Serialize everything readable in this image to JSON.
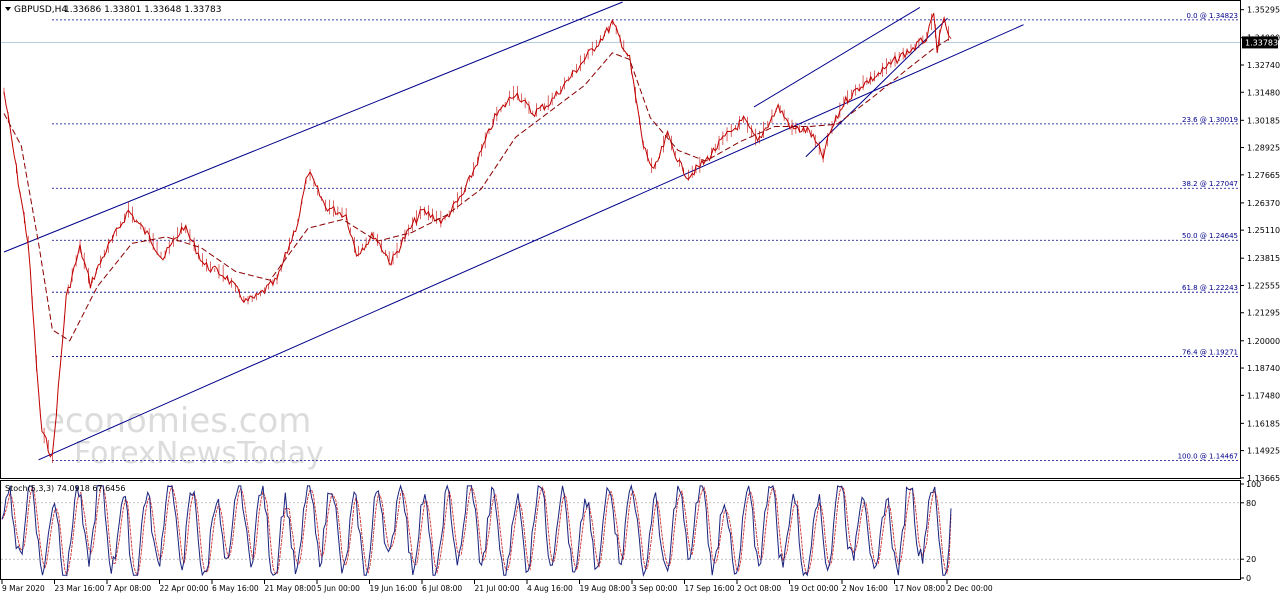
{
  "header": {
    "symbol": "GBPUSD,H4",
    "ohlc": "1.33686 1.33801 1.33648 1.33783"
  },
  "watermark": {
    "line1": "economies.com",
    "line2": "ForexNewsToday"
  },
  "colors": {
    "frame": "#000000",
    "candle": "#c00000",
    "ma": "#8b0000",
    "channel": "#00008b",
    "fib": "#00008b",
    "stoch_main": "#1a237e",
    "stoch_signal": "#d32f2f",
    "current_price_bg": "#000000",
    "current_price_text": "#ffffff"
  },
  "price_axis": {
    "ticks": [
      "1.35295",
      "1.34000",
      "1.32740",
      "1.31480",
      "1.30185",
      "1.28925",
      "1.27665",
      "1.26370",
      "1.25110",
      "1.23815",
      "1.22555",
      "1.21295",
      "1.20000",
      "1.18740",
      "1.17480",
      "1.16185",
      "1.14925",
      "1.13665"
    ],
    "current_price": "1.33783"
  },
  "time_axis": {
    "ticks": [
      "9 Mar 2020",
      "23 Mar 16:00",
      "7 Apr 08:00",
      "22 Apr 00:00",
      "6 May 16:00",
      "21 May 08:00",
      "5 Jun 00:00",
      "19 Jun 16:00",
      "6 Jul 08:00",
      "21 Jul 00:00",
      "4 Aug 16:00",
      "19 Aug 08:00",
      "3 Sep 00:00",
      "17 Sep 16:00",
      "2 Oct 08:00",
      "19 Oct 00:00",
      "2 Nov 16:00",
      "17 Nov 08:00",
      "2 Dec 00:00"
    ]
  },
  "fib_levels": [
    {
      "label": "0.0 @ 1.34823",
      "price": 1.34823
    },
    {
      "label": "23.6 @ 1.30019",
      "price": 1.30019
    },
    {
      "label": "38.2 @ 1.27047",
      "price": 1.27047
    },
    {
      "label": "50.0 @ 1.24645",
      "price": 1.24645
    },
    {
      "label": "61.8 @ 1.22243",
      "price": 1.22243
    },
    {
      "label": "76.4 @ 1.19271",
      "price": 1.19271
    },
    {
      "label": "100.0 @ 1.14467",
      "price": 1.14467
    }
  ],
  "stoch": {
    "label": "Stoch(5,3,3) 74.0918 67.6456",
    "ticks": [
      "100",
      "80",
      "20",
      "0"
    ],
    "levels": [
      80,
      20
    ]
  },
  "chart_data": {
    "type": "line",
    "symbol": "GBPUSD",
    "timeframe": "H4",
    "price_range": [
      1.1366,
      1.3565
    ],
    "x_range": [
      "2020-03-09",
      "2020-12-08"
    ],
    "price_path": {
      "dates": [
        "2020-03-09",
        "2020-03-12",
        "2020-03-16",
        "2020-03-19",
        "2020-03-20",
        "2020-03-23",
        "2020-03-27",
        "2020-03-31",
        "2020-04-03",
        "2020-04-07",
        "2020-04-14",
        "2020-04-20",
        "2020-04-24",
        "2020-04-30",
        "2020-05-06",
        "2020-05-12",
        "2020-05-18",
        "2020-05-21",
        "2020-05-27",
        "2020-06-02",
        "2020-06-05",
        "2020-06-10",
        "2020-06-16",
        "2020-06-19",
        "2020-06-24",
        "2020-06-29",
        "2020-07-03",
        "2020-07-08",
        "2020-07-14",
        "2020-07-20",
        "2020-07-24",
        "2020-07-29",
        "2020-08-04",
        "2020-08-09",
        "2020-08-14",
        "2020-08-20",
        "2020-08-25",
        "2020-08-31",
        "2020-09-01",
        "2020-09-06",
        "2020-09-10",
        "2020-09-13",
        "2020-09-17",
        "2020-09-21",
        "2020-09-23",
        "2020-09-28",
        "2020-10-03",
        "2020-10-09",
        "2020-10-13",
        "2020-10-19",
        "2020-10-23",
        "2020-10-28",
        "2020-11-01",
        "2020-11-03",
        "2020-11-07",
        "2020-11-12",
        "2020-11-17",
        "2020-11-23",
        "2020-11-27",
        "2020-12-01",
        "2020-12-03",
        "2020-12-04",
        "2020-12-06",
        "2020-12-08"
      ],
      "prices": [
        1.315,
        1.285,
        1.245,
        1.175,
        1.158,
        1.146,
        1.22,
        1.243,
        1.226,
        1.24,
        1.26,
        1.248,
        1.238,
        1.253,
        1.235,
        1.23,
        1.218,
        1.22,
        1.228,
        1.255,
        1.278,
        1.262,
        1.258,
        1.24,
        1.249,
        1.236,
        1.248,
        1.26,
        1.255,
        1.268,
        1.283,
        1.303,
        1.315,
        1.305,
        1.31,
        1.322,
        1.332,
        1.344,
        1.347,
        1.33,
        1.29,
        1.278,
        1.295,
        1.28,
        1.276,
        1.283,
        1.293,
        1.302,
        1.292,
        1.308,
        1.298,
        1.297,
        1.285,
        1.296,
        1.31,
        1.318,
        1.323,
        1.331,
        1.335,
        1.34,
        1.35,
        1.335,
        1.348,
        1.338
      ]
    },
    "ma_path": {
      "dates": [
        "2020-03-09",
        "2020-03-14",
        "2020-03-19",
        "2020-03-23",
        "2020-03-28",
        "2020-04-05",
        "2020-04-15",
        "2020-04-25",
        "2020-05-05",
        "2020-05-15",
        "2020-05-25",
        "2020-06-05",
        "2020-06-15",
        "2020-06-25",
        "2020-07-05",
        "2020-07-15",
        "2020-07-25",
        "2020-08-04",
        "2020-08-14",
        "2020-08-24",
        "2020-09-01",
        "2020-09-06",
        "2020-09-12",
        "2020-09-20",
        "2020-09-28",
        "2020-10-08",
        "2020-10-18",
        "2020-10-28",
        "2020-11-05",
        "2020-11-15",
        "2020-11-25",
        "2020-12-03",
        "2020-12-08"
      ],
      "prices": [
        1.305,
        1.29,
        1.245,
        1.205,
        1.2,
        1.225,
        1.245,
        1.248,
        1.243,
        1.232,
        1.228,
        1.252,
        1.256,
        1.246,
        1.25,
        1.258,
        1.27,
        1.294,
        1.306,
        1.318,
        1.333,
        1.33,
        1.303,
        1.288,
        1.283,
        1.292,
        1.299,
        1.299,
        1.3,
        1.312,
        1.325,
        1.335,
        1.34
      ]
    },
    "channel_lines": [
      {
        "from": {
          "date": "2020-03-09",
          "price": 1.241
        },
        "to": {
          "date": "2020-09-04",
          "price": 1.3565
        }
      },
      {
        "from": {
          "date": "2020-03-19",
          "price": 1.145
        },
        "to": {
          "date": "2020-12-29",
          "price": 1.346
        }
      },
      {
        "from": {
          "date": "2020-10-27",
          "price": 1.285
        },
        "to": {
          "date": "2020-12-07",
          "price": 1.349
        }
      },
      {
        "from": {
          "date": "2020-10-12",
          "price": 1.308
        },
        "to": {
          "date": "2020-11-29",
          "price": 1.354
        }
      }
    ],
    "stochastic": {
      "main": 74.0918,
      "signal": 67.6456,
      "period": "5,3,3",
      "range": [
        0,
        100
      ]
    }
  }
}
